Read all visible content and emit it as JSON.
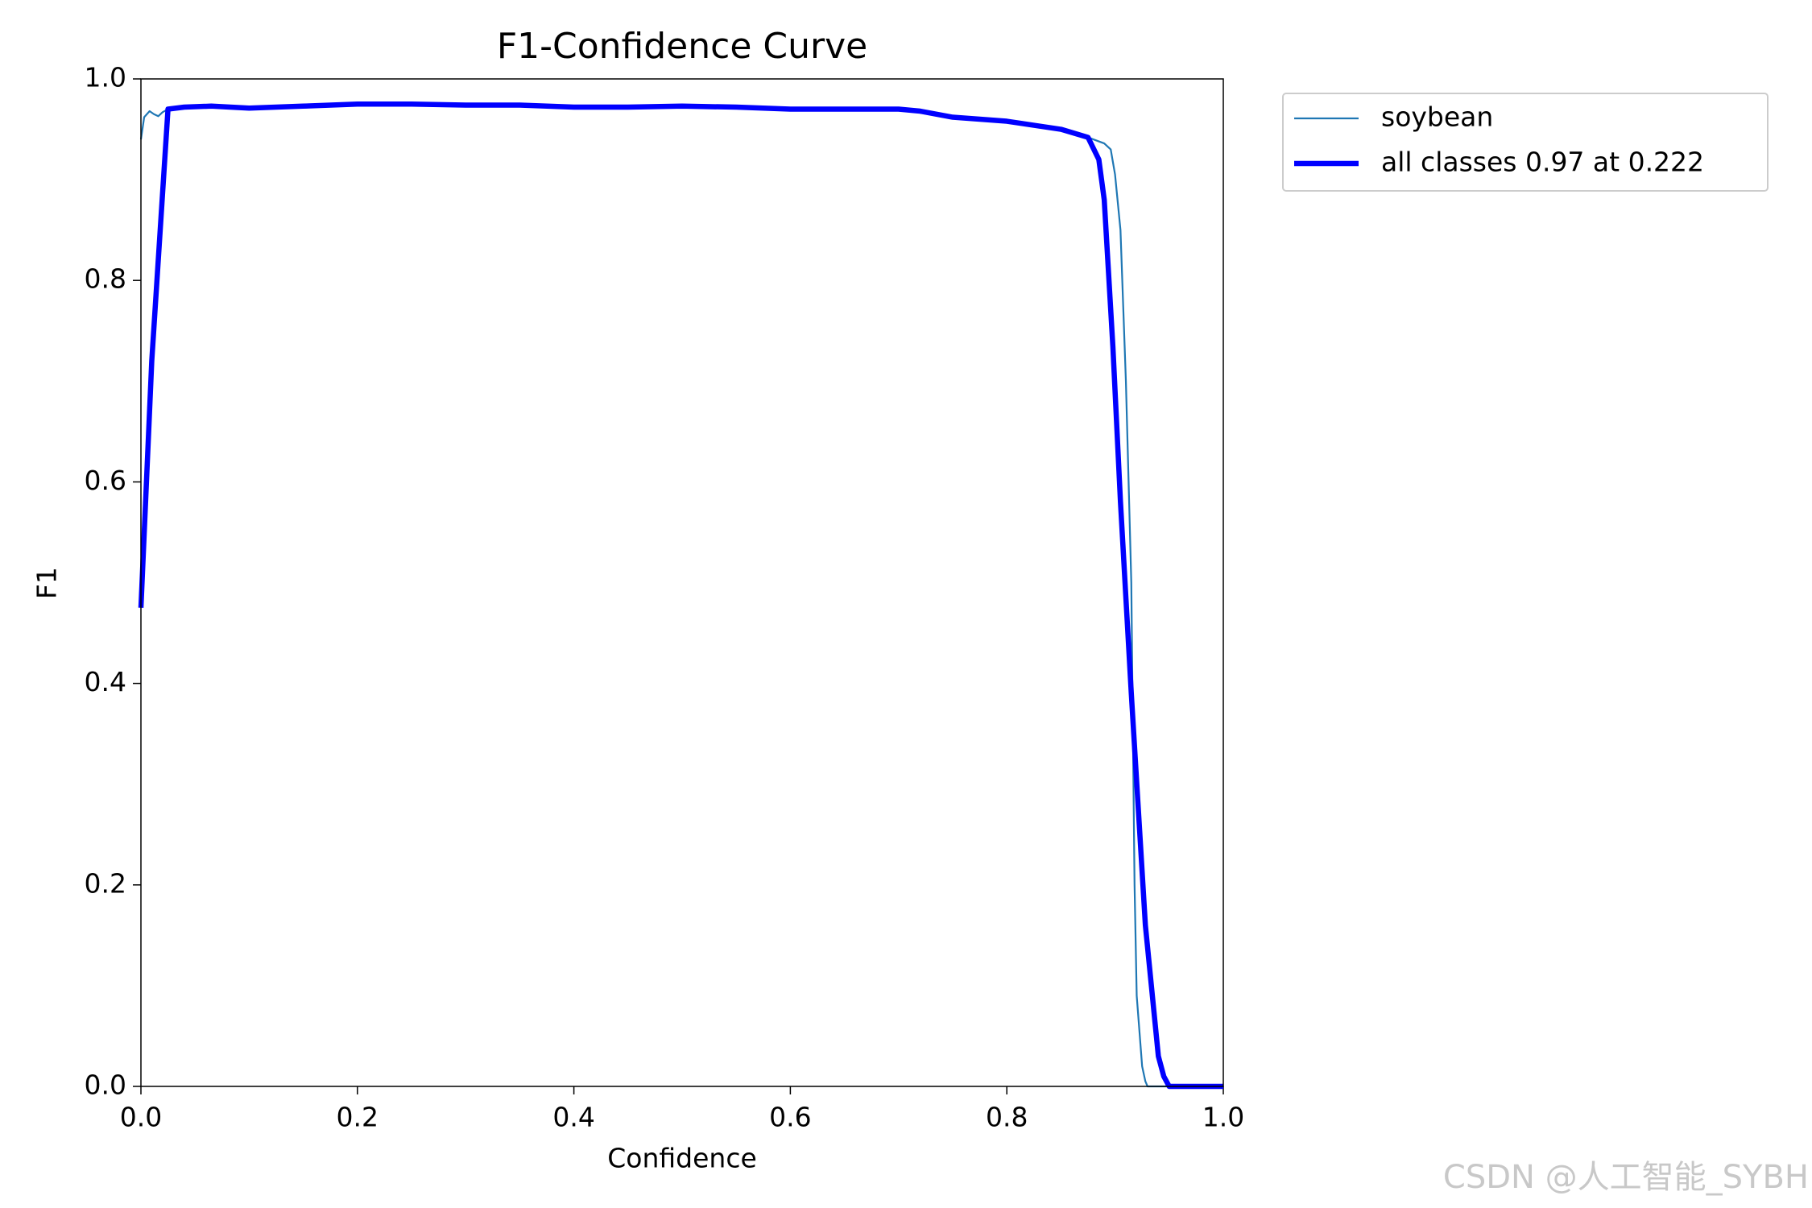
{
  "chart_data": {
    "type": "line",
    "title": "F1-Confidence Curve",
    "xlabel": "Confidence",
    "ylabel": "F1",
    "xlim": [
      0,
      1
    ],
    "ylim": [
      0,
      1
    ],
    "xticks": [
      {
        "value": 0,
        "label": "0.0"
      },
      0.2,
      0.4,
      0.6,
      0.8,
      {
        "value": 1,
        "label": "1.0"
      }
    ],
    "yticks": [
      {
        "value": 0,
        "label": "0.0"
      },
      0.2,
      0.4,
      0.6,
      0.8,
      {
        "value": 1,
        "label": "1.0"
      }
    ],
    "legend": "outside upper right",
    "series": [
      {
        "name": "soybean",
        "color": "#1f77b4",
        "x": [
          0,
          0.003,
          0.008,
          0.012,
          0.016,
          0.02,
          0.025,
          0.04,
          0.065,
          0.1,
          0.15,
          0.2,
          0.25,
          0.3,
          0.35,
          0.4,
          0.45,
          0.5,
          0.55,
          0.6,
          0.65,
          0.7,
          0.72,
          0.75,
          0.8,
          0.85,
          0.87,
          0.88,
          0.89,
          0.896,
          0.9,
          0.905,
          0.91,
          0.915,
          0.918,
          0.92,
          0.925,
          0.928,
          0.93,
          1
        ],
        "values": [
          0.94,
          0.962,
          0.968,
          0.965,
          0.963,
          0.967,
          0.97,
          0.972,
          0.973,
          0.971,
          0.973,
          0.975,
          0.975,
          0.974,
          0.974,
          0.972,
          0.972,
          0.973,
          0.972,
          0.97,
          0.97,
          0.97,
          0.968,
          0.962,
          0.958,
          0.95,
          0.944,
          0.94,
          0.936,
          0.93,
          0.905,
          0.85,
          0.7,
          0.5,
          0.2,
          0.09,
          0.02,
          0.005,
          0,
          0
        ]
      },
      {
        "name": "all classes 0.97 at 0.222",
        "color": "#0000ff",
        "x": [
          0,
          0.01,
          0.025,
          0.04,
          0.065,
          0.1,
          0.15,
          0.2,
          0.25,
          0.3,
          0.35,
          0.4,
          0.45,
          0.5,
          0.55,
          0.6,
          0.65,
          0.7,
          0.72,
          0.75,
          0.8,
          0.85,
          0.875,
          0.885,
          0.89,
          0.898,
          0.905,
          0.915,
          0.928,
          0.94,
          0.945,
          0.95,
          1
        ],
        "values": [
          0.475,
          0.72,
          0.97,
          0.972,
          0.973,
          0.971,
          0.973,
          0.975,
          0.975,
          0.974,
          0.974,
          0.972,
          0.972,
          0.973,
          0.972,
          0.97,
          0.97,
          0.97,
          0.968,
          0.962,
          0.958,
          0.95,
          0.942,
          0.92,
          0.88,
          0.734,
          0.58,
          0.39,
          0.16,
          0.03,
          0.01,
          0,
          0
        ]
      }
    ]
  },
  "watermark": "CSDN @人工智能_SYBH"
}
